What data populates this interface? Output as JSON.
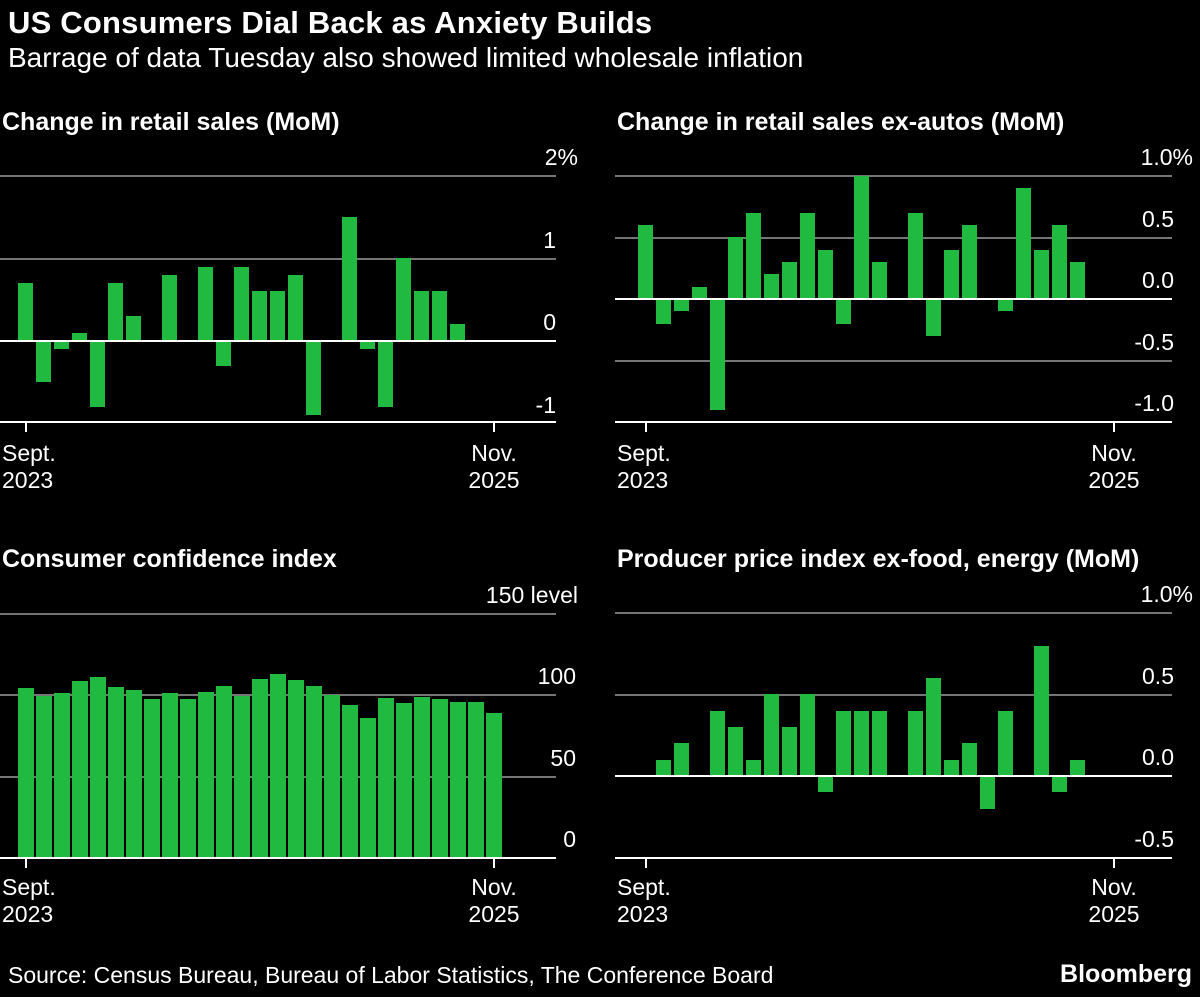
{
  "header": {
    "title": "US Consumers Dial Back as Anxiety Builds",
    "subtitle": "Barrage of data Tuesday also showed limited wholesale inflation"
  },
  "footer": {
    "source": "Source: Census Bureau, Bureau of Labor Statistics, The Conference Board",
    "brand": "Bloomberg"
  },
  "colors": {
    "background": "#000000",
    "bar_green": "#20ba40",
    "gridline_gray": "#757575",
    "axis_white": "#ffffff",
    "text": "#ffffff"
  },
  "chart_data": [
    {
      "id": "retail-sales",
      "type": "bar",
      "title": "Change in retail sales (MoM)",
      "unit": "%",
      "ylim": [
        -1,
        2
      ],
      "grid": "horizontal",
      "legend": "none",
      "y_axis": [
        {
          "value": 2,
          "label": "2%"
        },
        {
          "value": 1,
          "label": "1"
        },
        {
          "value": 0,
          "label": "0"
        },
        {
          "value": -1,
          "label": "-1"
        }
      ],
      "x_ticks": [
        {
          "line1": "Sept.",
          "line2": "2023"
        },
        {
          "line1": "Nov.",
          "line2": "2025"
        }
      ],
      "categories": [
        "Sep 2023",
        "Oct 2023",
        "Nov 2023",
        "Dec 2023",
        "Jan 2024",
        "Feb 2024",
        "Mar 2024",
        "Apr 2024",
        "May 2024",
        "Jun 2024",
        "Jul 2024",
        "Aug 2024",
        "Sep 2024",
        "Oct 2024",
        "Nov 2024",
        "Dec 2024",
        "Jan 2025",
        "Feb 2025",
        "Mar 2025",
        "Apr 2025",
        "May 2025",
        "Jun 2025",
        "Jul 2025",
        "Aug 2025",
        "Sep 2025"
      ],
      "values": [
        0.7,
        -0.5,
        -0.1,
        0.1,
        -0.8,
        0.7,
        0.3,
        0.0,
        0.8,
        0.0,
        0.9,
        -0.3,
        0.9,
        0.6,
        0.6,
        0.8,
        -0.9,
        0.0,
        1.5,
        -0.1,
        -0.8,
        1.0,
        0.6,
        0.6,
        0.2
      ]
    },
    {
      "id": "retail-sales-ex-autos",
      "type": "bar",
      "title": "Change in retail sales ex-autos (MoM)",
      "unit": "%",
      "ylim": [
        -1.0,
        1.0
      ],
      "grid": "horizontal",
      "legend": "none",
      "y_axis": [
        {
          "value": 1.0,
          "label": "1.0%"
        },
        {
          "value": 0.5,
          "label": "0.5"
        },
        {
          "value": 0.0,
          "label": "0.0"
        },
        {
          "value": -0.5,
          "label": "-0.5"
        },
        {
          "value": -1.0,
          "label": "-1.0"
        }
      ],
      "x_ticks": [
        {
          "line1": "Sept.",
          "line2": "2023"
        },
        {
          "line1": "Nov.",
          "line2": "2025"
        }
      ],
      "categories": [
        "Sep 2023",
        "Oct 2023",
        "Nov 2023",
        "Dec 2023",
        "Jan 2024",
        "Feb 2024",
        "Mar 2024",
        "Apr 2024",
        "May 2024",
        "Jun 2024",
        "Jul 2024",
        "Aug 2024",
        "Sep 2024",
        "Oct 2024",
        "Nov 2024",
        "Dec 2024",
        "Jan 2025",
        "Feb 2025",
        "Mar 2025",
        "Apr 2025",
        "May 2025",
        "Jun 2025",
        "Jul 2025",
        "Aug 2025",
        "Sep 2025"
      ],
      "values": [
        0.6,
        -0.2,
        -0.1,
        0.1,
        -0.9,
        0.5,
        0.7,
        0.2,
        0.3,
        0.7,
        0.4,
        -0.2,
        1.0,
        0.3,
        0.0,
        0.7,
        -0.3,
        0.4,
        0.6,
        0.0,
        -0.1,
        0.9,
        0.4,
        0.6,
        0.3
      ]
    },
    {
      "id": "consumer-confidence",
      "type": "bar",
      "title": "Consumer confidence index",
      "unit": "level",
      "ylim": [
        0,
        150
      ],
      "grid": "horizontal",
      "legend": "none",
      "y_axis": [
        {
          "value": 150,
          "label": "150 level"
        },
        {
          "value": 100,
          "label": "100"
        },
        {
          "value": 50,
          "label": "50"
        },
        {
          "value": 0,
          "label": "0"
        }
      ],
      "x_ticks": [
        {
          "line1": "Sept.",
          "line2": "2023"
        },
        {
          "line1": "Nov.",
          "line2": "2025"
        }
      ],
      "categories": [
        "Sep 2023",
        "Oct 2023",
        "Nov 2023",
        "Dec 2023",
        "Jan 2024",
        "Feb 2024",
        "Mar 2024",
        "Apr 2024",
        "May 2024",
        "Jun 2024",
        "Jul 2024",
        "Aug 2024",
        "Sep 2024",
        "Oct 2024",
        "Nov 2024",
        "Dec 2024",
        "Jan 2025",
        "Feb 2025",
        "Mar 2025",
        "Apr 2025",
        "May 2025",
        "Jun 2025",
        "Jul 2025",
        "Aug 2025",
        "Sep 2025",
        "Oct 2025",
        "Nov 2025"
      ],
      "values": [
        104.3,
        99.1,
        101.0,
        108.3,
        110.9,
        104.8,
        103.1,
        97.5,
        101.3,
        97.8,
        101.9,
        105.6,
        99.2,
        109.6,
        112.8,
        109.5,
        105.3,
        100.1,
        93.9,
        85.7,
        98.0,
        95.2,
        98.7,
        97.4,
        95.6,
        95.5,
        88.7
      ]
    },
    {
      "id": "producer-price-index-core",
      "type": "bar",
      "title": "Producer price index ex-food, energy (MoM)",
      "unit": "%",
      "ylim": [
        -0.5,
        1.0
      ],
      "grid": "horizontal",
      "legend": "none",
      "y_axis": [
        {
          "value": 1.0,
          "label": "1.0%"
        },
        {
          "value": 0.5,
          "label": "0.5"
        },
        {
          "value": 0.0,
          "label": "0.0"
        },
        {
          "value": -0.5,
          "label": "-0.5"
        }
      ],
      "x_ticks": [
        {
          "line1": "Sept.",
          "line2": "2023"
        },
        {
          "line1": "Nov.",
          "line2": "2025"
        }
      ],
      "categories": [
        "Sep 2023",
        "Oct 2023",
        "Nov 2023",
        "Dec 2023",
        "Jan 2024",
        "Feb 2024",
        "Mar 2024",
        "Apr 2024",
        "May 2024",
        "Jun 2024",
        "Jul 2024",
        "Aug 2024",
        "Sep 2024",
        "Oct 2024",
        "Nov 2024",
        "Dec 2024",
        "Jan 2025",
        "Feb 2025",
        "Mar 2025",
        "Apr 2025",
        "May 2025",
        "Jun 2025",
        "Jul 2025",
        "Aug 2025",
        "Sep 2025"
      ],
      "values": [
        0.0,
        0.1,
        0.2,
        0.0,
        0.4,
        0.3,
        0.1,
        0.5,
        0.3,
        0.5,
        -0.1,
        0.4,
        0.4,
        0.4,
        0.0,
        0.4,
        0.6,
        0.1,
        0.2,
        -0.2,
        0.4,
        0.0,
        0.8,
        -0.1,
        0.1
      ]
    }
  ]
}
